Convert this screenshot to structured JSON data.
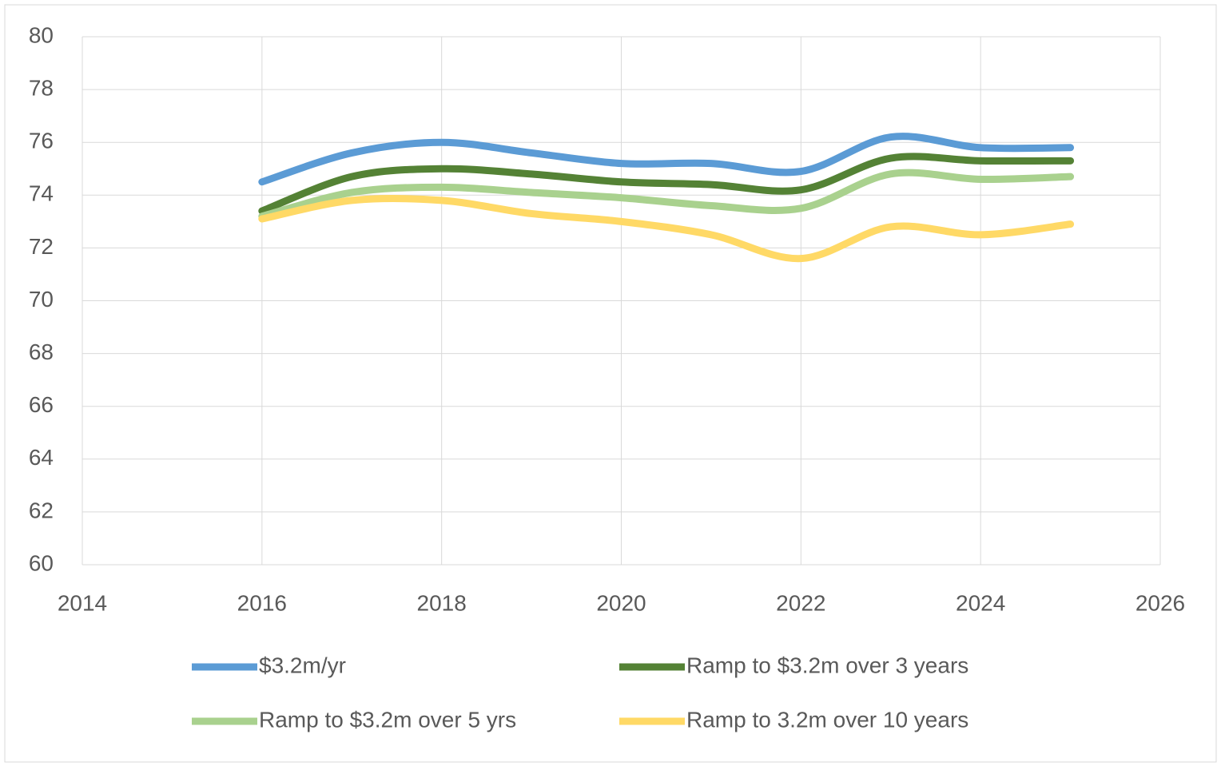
{
  "chart_data": {
    "type": "line",
    "x": [
      2016,
      2017,
      2018,
      2019,
      2020,
      2021,
      2022,
      2023,
      2024,
      2025
    ],
    "series": [
      {
        "name": "$3.2m/yr",
        "color": "#5b9bd5",
        "values": [
          74.5,
          75.6,
          76.0,
          75.6,
          75.2,
          75.2,
          74.9,
          76.2,
          75.8,
          75.8
        ]
      },
      {
        "name": "Ramp to $3.2m over 3 years",
        "color": "#548235",
        "values": [
          73.4,
          74.7,
          75.0,
          74.8,
          74.5,
          74.4,
          74.2,
          75.4,
          75.3,
          75.3
        ]
      },
      {
        "name": "Ramp to $3.2m over 5 yrs",
        "color": "#a9d18e",
        "values": [
          73.2,
          74.1,
          74.3,
          74.1,
          73.9,
          73.6,
          73.5,
          74.8,
          74.6,
          74.7
        ]
      },
      {
        "name": "Ramp to 3.2m over 10 years",
        "color": "#ffd966",
        "values": [
          73.1,
          73.8,
          73.8,
          73.3,
          73.0,
          72.5,
          71.6,
          72.8,
          72.5,
          72.9
        ]
      }
    ],
    "xlim": [
      2014,
      2026
    ],
    "xticks": [
      2014,
      2016,
      2018,
      2020,
      2022,
      2024,
      2026
    ],
    "ylim": [
      60,
      80
    ],
    "yticks": [
      60,
      62,
      64,
      66,
      68,
      70,
      72,
      74,
      76,
      78,
      80
    ],
    "grid": true,
    "smooth": true,
    "legend": "bottom"
  }
}
